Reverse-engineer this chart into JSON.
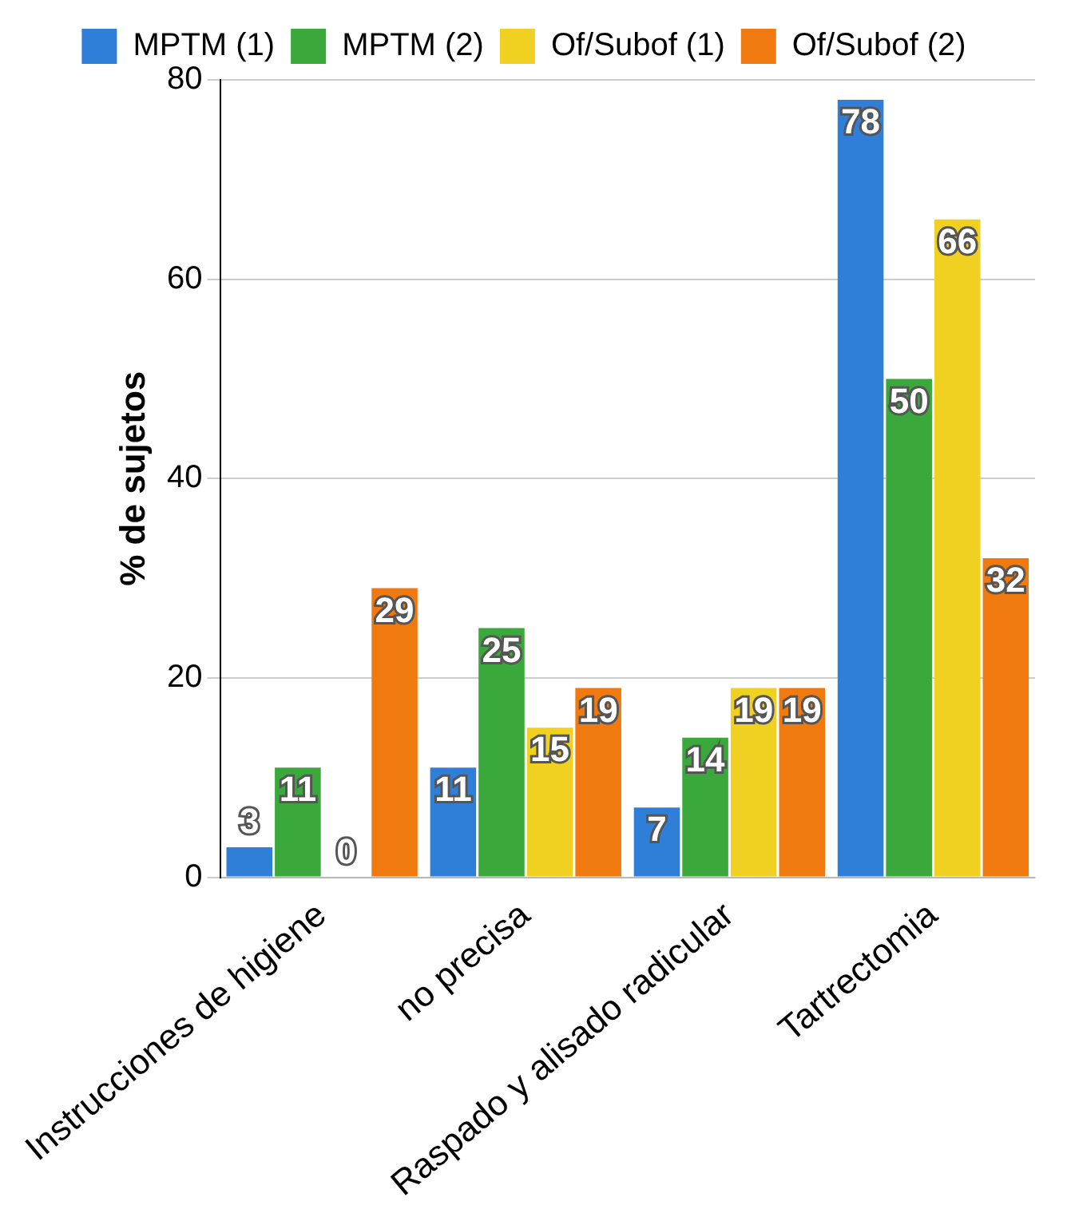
{
  "chart_data": {
    "type": "bar",
    "ylabel": "% de sujetos",
    "categories": [
      "Instrucciones de higiene",
      "no precisa",
      "Raspado y alisado radicular",
      "Tartrectomia"
    ],
    "series": [
      {
        "name": "MPTM (1)",
        "color": "#2f7fd8",
        "values": [
          3,
          11,
          7,
          78
        ]
      },
      {
        "name": "MPTM (2)",
        "color": "#3aa83a",
        "values": [
          11,
          25,
          14,
          50
        ]
      },
      {
        "name": "Of/Subof (1)",
        "color": "#f0d020",
        "values": [
          0,
          15,
          19,
          66
        ]
      },
      {
        "name": "Of/Subof (2)",
        "color": "#f07a10",
        "values": [
          29,
          19,
          19,
          32
        ]
      }
    ],
    "ylim": [
      0,
      80
    ],
    "yticks": [
      0,
      20,
      40,
      60,
      80
    ],
    "grid": "y",
    "legend": "top",
    "data_labels": true
  }
}
